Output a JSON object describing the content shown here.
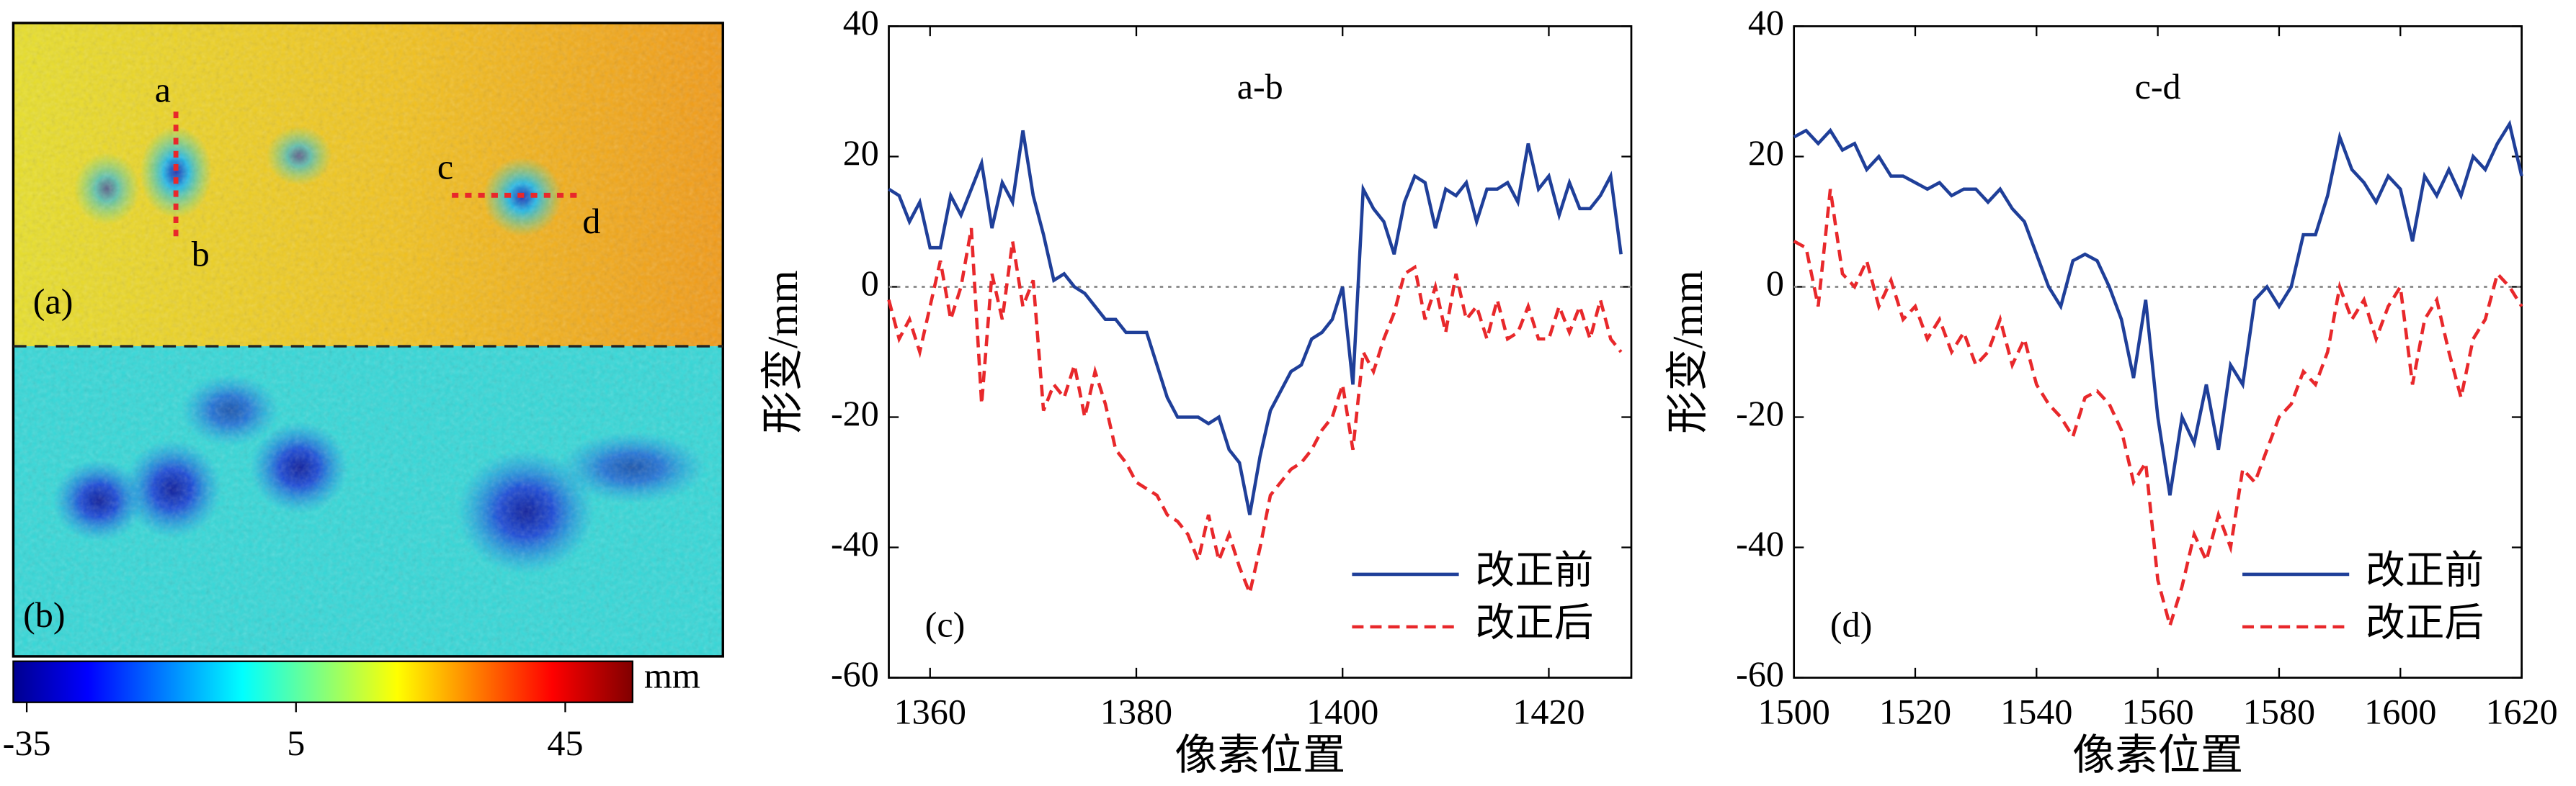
{
  "maps": {
    "panels": [
      "(a)",
      "(b)"
    ],
    "profile_points": [
      "a",
      "b",
      "c",
      "d"
    ]
  },
  "colorbar": {
    "lim": [
      -37,
      55
    ],
    "ticks": [
      -35,
      5,
      45
    ],
    "unit": "mm"
  },
  "chart_data": [
    {
      "type": "line",
      "title": "a-b",
      "panel_label": "(c)",
      "xlabel": "像素位置",
      "ylabel": "形变/mm",
      "xlim": [
        1356,
        1428
      ],
      "ylim": [
        -60,
        40
      ],
      "xticks": [
        1360,
        1380,
        1400,
        1420
      ],
      "yticks": [
        -60,
        -40,
        -20,
        0,
        20,
        40
      ],
      "reference_line": 0,
      "legend": "lower right",
      "x": [
        1356,
        1357,
        1358,
        1359,
        1360,
        1361,
        1362,
        1363,
        1364,
        1365,
        1366,
        1367,
        1368,
        1369,
        1370,
        1371,
        1372,
        1373,
        1374,
        1375,
        1376,
        1377,
        1378,
        1379,
        1380,
        1381,
        1382,
        1383,
        1384,
        1385,
        1386,
        1387,
        1388,
        1389,
        1390,
        1391,
        1392,
        1393,
        1394,
        1395,
        1396,
        1397,
        1398,
        1399,
        1400,
        1401,
        1402,
        1403,
        1404,
        1405,
        1406,
        1407,
        1408,
        1409,
        1410,
        1411,
        1412,
        1413,
        1414,
        1415,
        1416,
        1417,
        1418,
        1419,
        1420,
        1421,
        1422,
        1423,
        1424,
        1425,
        1426,
        1427
      ],
      "series": [
        {
          "name": "改正前",
          "color": "#1f3f99",
          "dash": false,
          "values": [
            15,
            14,
            10,
            13,
            6,
            6,
            14,
            11,
            15,
            19,
            9,
            16,
            13,
            24,
            14,
            8,
            1,
            2,
            0,
            -1,
            -3,
            -5,
            -5,
            -7,
            -7,
            -7,
            -12,
            -17,
            -20,
            -20,
            -20,
            -21,
            -20,
            -25,
            -27,
            -35,
            -26,
            -19,
            -16,
            -13,
            -12,
            -8,
            -7,
            -5,
            0,
            -15,
            15,
            12,
            10,
            5,
            13,
            17,
            16,
            9,
            15,
            14,
            16,
            10,
            15,
            15,
            16,
            13,
            22,
            15,
            17,
            11,
            16,
            12,
            12,
            14,
            17,
            5
          ]
        },
        {
          "name": "改正后",
          "color": "#e8282b",
          "dash": true,
          "values": [
            -2,
            -8,
            -5,
            -10,
            -3,
            4,
            -5,
            0,
            9,
            -18,
            2,
            -5,
            7,
            -3,
            1,
            -19,
            -15,
            -17,
            -12,
            -20,
            -13,
            -18,
            -25,
            -27,
            -30,
            -31,
            -32,
            -35,
            -36,
            -38,
            -42,
            -35,
            -42,
            -38,
            -43,
            -47,
            -40,
            -32,
            -30,
            -28,
            -27,
            -25,
            -22,
            -20,
            -15,
            -25,
            -10,
            -13,
            -8,
            -4,
            2,
            3,
            -5,
            0,
            -7,
            2,
            -5,
            -3,
            -8,
            -2,
            -8,
            -7,
            -3,
            -8,
            -8,
            -3,
            -7,
            -3,
            -8,
            -2,
            -8,
            -10
          ]
        }
      ]
    },
    {
      "type": "line",
      "title": "c-d",
      "panel_label": "(d)",
      "xlabel": "像素位置",
      "ylabel": "形变/mm",
      "xlim": [
        1500,
        1620
      ],
      "ylim": [
        -60,
        40
      ],
      "xticks": [
        1500,
        1520,
        1540,
        1560,
        1580,
        1600,
        1620
      ],
      "yticks": [
        -60,
        -40,
        -20,
        0,
        20,
        40
      ],
      "reference_line": 0,
      "legend": "lower right",
      "x": [
        1500,
        1502,
        1504,
        1506,
        1508,
        1510,
        1512,
        1514,
        1516,
        1518,
        1520,
        1522,
        1524,
        1526,
        1528,
        1530,
        1532,
        1534,
        1536,
        1538,
        1540,
        1542,
        1544,
        1546,
        1548,
        1550,
        1552,
        1554,
        1556,
        1558,
        1560,
        1562,
        1564,
        1566,
        1568,
        1570,
        1572,
        1574,
        1576,
        1578,
        1580,
        1582,
        1584,
        1586,
        1588,
        1590,
        1592,
        1594,
        1596,
        1598,
        1600,
        1602,
        1604,
        1606,
        1608,
        1610,
        1612,
        1614,
        1616,
        1618,
        1620
      ],
      "series": [
        {
          "name": "改正前",
          "color": "#1f3f99",
          "dash": false,
          "values": [
            23,
            24,
            22,
            24,
            21,
            22,
            18,
            20,
            17,
            17,
            16,
            15,
            16,
            14,
            15,
            15,
            13,
            15,
            12,
            10,
            5,
            0,
            -3,
            4,
            5,
            4,
            0,
            -5,
            -14,
            -2,
            -20,
            -32,
            -20,
            -24,
            -15,
            -25,
            -12,
            -15,
            -2,
            0,
            -3,
            0,
            8,
            8,
            14,
            23,
            18,
            16,
            13,
            17,
            15,
            7,
            17,
            14,
            18,
            14,
            20,
            18,
            22,
            25,
            17
          ]
        },
        {
          "name": "改正后",
          "color": "#e8282b",
          "dash": true,
          "values": [
            7,
            6,
            -3,
            15,
            2,
            0,
            4,
            -3,
            1,
            -5,
            -3,
            -8,
            -5,
            -10,
            -7,
            -12,
            -10,
            -5,
            -12,
            -8,
            -15,
            -18,
            -20,
            -23,
            -17,
            -16,
            -18,
            -22,
            -30,
            -27,
            -45,
            -52,
            -46,
            -38,
            -42,
            -35,
            -40,
            -28,
            -30,
            -25,
            -20,
            -18,
            -13,
            -15,
            -10,
            0,
            -5,
            -2,
            -8,
            -3,
            0,
            -15,
            -5,
            -2,
            -10,
            -17,
            -8,
            -5,
            2,
            0,
            -3
          ]
        }
      ]
    }
  ]
}
